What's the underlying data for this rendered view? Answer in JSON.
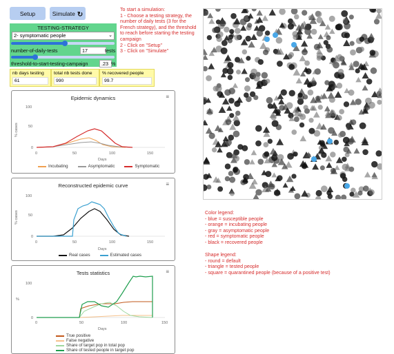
{
  "controls": {
    "setup_label": "Setup",
    "simulate_label": "Simulate",
    "simulate_icon": "loop-arrow-icon",
    "strategy_title": "TESTING-STRATEGY",
    "strategy_value": "2- symptomatic people",
    "daily_tests_label": "number-of-daily-tests",
    "daily_tests_value": "17",
    "daily_tests_unit": "tests",
    "daily_tests_slider_fraction": 0.52,
    "threshold_label": "threshold-to-start-testing-campaign",
    "threshold_value": ".23",
    "threshold_unit": "%",
    "threshold_slider_fraction": 0.23
  },
  "instructions": [
    "To start a simulation:",
    "1 - Choose a testing strategy, the",
    "number of daily tests (3 for the",
    "French strategy), and the threshold",
    "to reach before starting the testing",
    "campaign",
    "2 - Click on \"Setup\"",
    "3 - Click on \"Simulate\""
  ],
  "monitors": [
    {
      "label": "nb days testing",
      "value": "61"
    },
    {
      "label": "total nb tests done",
      "value": "990"
    },
    {
      "label": "% recovered people",
      "value": "99.7"
    }
  ],
  "plots": {
    "epidemic": {
      "title": "Epidemic dynamics",
      "ylabel": "% cases",
      "xlabel": "Days",
      "yticks": [
        "100",
        "50",
        "0"
      ],
      "xticks": [
        "0",
        "50",
        "100",
        "150"
      ],
      "legend": [
        "Incubating",
        "Asymptomatic",
        "Symptomatic"
      ]
    },
    "reconstructed": {
      "title": "Reconstructed epidemic curve",
      "ylabel": "% cases",
      "xlabel": "Days",
      "yticks": [
        "100",
        "50",
        "0"
      ],
      "xticks": [
        "0",
        "50",
        "100",
        "150"
      ],
      "legend": [
        "Real cases",
        "Estimated cases"
      ]
    },
    "tests": {
      "title": "Tests statistics",
      "ylabel": "%",
      "xlabel": "Days",
      "yticks": [
        "100",
        "0"
      ],
      "xticks": [
        "0",
        "50",
        "100",
        "150"
      ],
      "legend": [
        "True positive",
        "False negative",
        "Share of target pop in total pop",
        "Share of tested people in target pop"
      ]
    },
    "menu_icon": "hamburger-menu-icon"
  },
  "color_legend": [
    "Color legend:",
    "- blue = susceptible people",
    "- orange = incubating people",
    "- gray = asymptomatic people",
    "- red = symptomatic people",
    "- black = recovered people"
  ],
  "shape_legend": [
    "Shape legend:",
    "- round = default",
    "- triangle = tested people",
    "- square = quarantined people (because of a positive test)"
  ],
  "colors": {
    "button_blue": "#b7cef1",
    "chooser_green": "#62d58d",
    "instruction_red": "#d62b2b",
    "monitor_yellow": "#fffaa8",
    "incubating": "#f0a050",
    "asymptomatic": "#999999",
    "symptomatic": "#d62b2b",
    "real_cases": "#111111",
    "estimated_cases": "#3aa0d0",
    "true_positive": "#c2571a",
    "false_negative": "#f5c08a",
    "share_target": "#9ed79e",
    "share_tested": "#1e9e4e"
  }
}
